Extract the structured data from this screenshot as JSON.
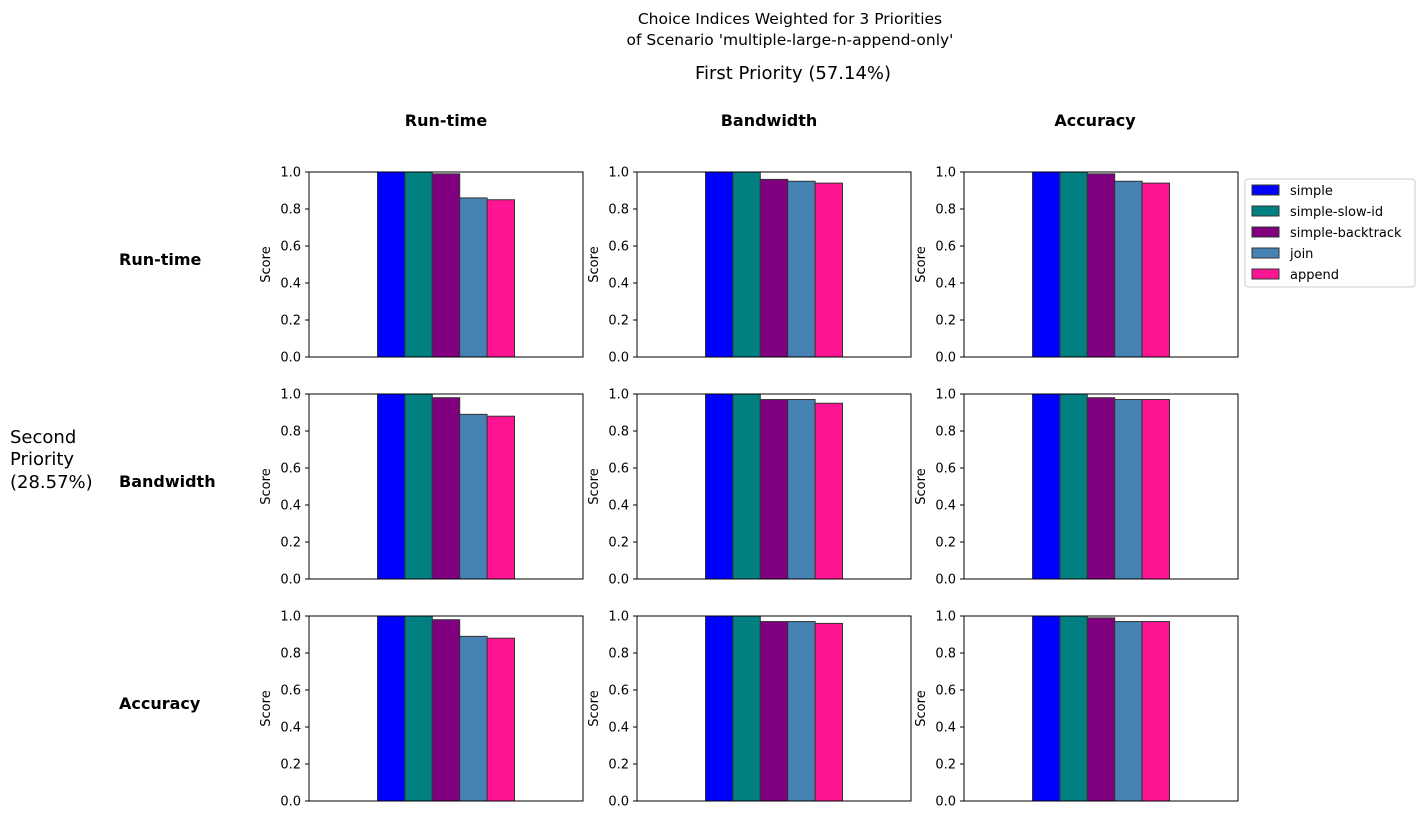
{
  "title_lines": [
    "Choice Indices Weighted for 3 Priorities",
    "of Scenario 'multiple-large-n-append-only'"
  ],
  "first_priority_label": "First Priority (57.14%)",
  "second_priority_lines": [
    "Second",
    "Priority",
    "(28.57%)"
  ],
  "column_headers": [
    "Run-time",
    "Bandwidth",
    "Accuracy"
  ],
  "row_headers": [
    "Run-time",
    "Bandwidth",
    "Accuracy"
  ],
  "legend": {
    "placement": "right",
    "entries": [
      {
        "label": "simple",
        "color": "#0000ff"
      },
      {
        "label": "simple-slow-id",
        "color": "#008080"
      },
      {
        "label": "simple-backtrack",
        "color": "#800080"
      },
      {
        "label": "join",
        "color": "#4682b4"
      },
      {
        "label": "append",
        "color": "#ff1493"
      }
    ]
  },
  "chart_data": {
    "type": "bar",
    "ylabel": "Score",
    "ylim": [
      0,
      1.0
    ],
    "yticks": [
      "0.0",
      "0.2",
      "0.4",
      "0.6",
      "0.8",
      "1.0"
    ],
    "grid": false,
    "series_names": [
      "simple",
      "simple-slow-id",
      "simple-backtrack",
      "join",
      "append"
    ],
    "panels": [
      {
        "row": 0,
        "col": 0,
        "values": [
          1.0,
          1.0,
          0.99,
          0.86,
          0.85
        ]
      },
      {
        "row": 0,
        "col": 1,
        "values": [
          1.0,
          1.0,
          0.96,
          0.95,
          0.94
        ]
      },
      {
        "row": 0,
        "col": 2,
        "values": [
          1.0,
          1.0,
          0.99,
          0.95,
          0.94
        ]
      },
      {
        "row": 1,
        "col": 0,
        "values": [
          1.0,
          1.0,
          0.98,
          0.89,
          0.88
        ]
      },
      {
        "row": 1,
        "col": 1,
        "values": [
          1.0,
          1.0,
          0.97,
          0.97,
          0.95
        ]
      },
      {
        "row": 1,
        "col": 2,
        "values": [
          1.0,
          1.0,
          0.98,
          0.97,
          0.97
        ]
      },
      {
        "row": 2,
        "col": 0,
        "values": [
          1.0,
          1.0,
          0.98,
          0.89,
          0.88
        ]
      },
      {
        "row": 2,
        "col": 1,
        "values": [
          1.0,
          1.0,
          0.97,
          0.97,
          0.96
        ]
      },
      {
        "row": 2,
        "col": 2,
        "values": [
          1.0,
          1.0,
          0.99,
          0.97,
          0.97
        ]
      }
    ]
  }
}
